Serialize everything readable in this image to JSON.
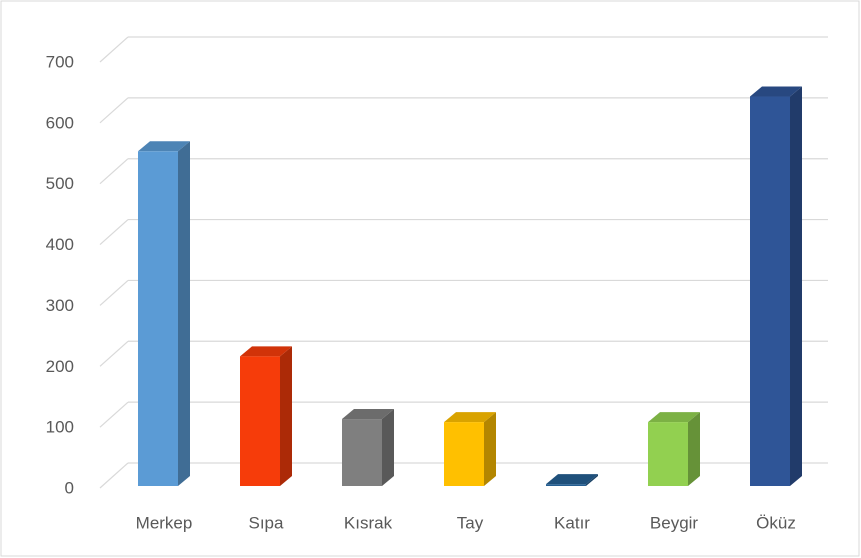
{
  "chart_data": {
    "type": "bar3d",
    "categories": [
      "Merkep",
      "Sıpa",
      "Kısrak",
      "Tay",
      "Katır",
      "Beygir",
      "Öküz"
    ],
    "values": [
      550,
      213,
      110,
      105,
      3,
      105,
      640
    ],
    "colors": [
      "#5b9bd5",
      "#f63c0a",
      "#7f7f7f",
      "#ffc000",
      "#255e91",
      "#92d050",
      "#2f5597"
    ],
    "ylim": [
      0,
      700
    ],
    "yticks": [
      0,
      100,
      200,
      300,
      400,
      500,
      600,
      700
    ],
    "grid": true
  }
}
